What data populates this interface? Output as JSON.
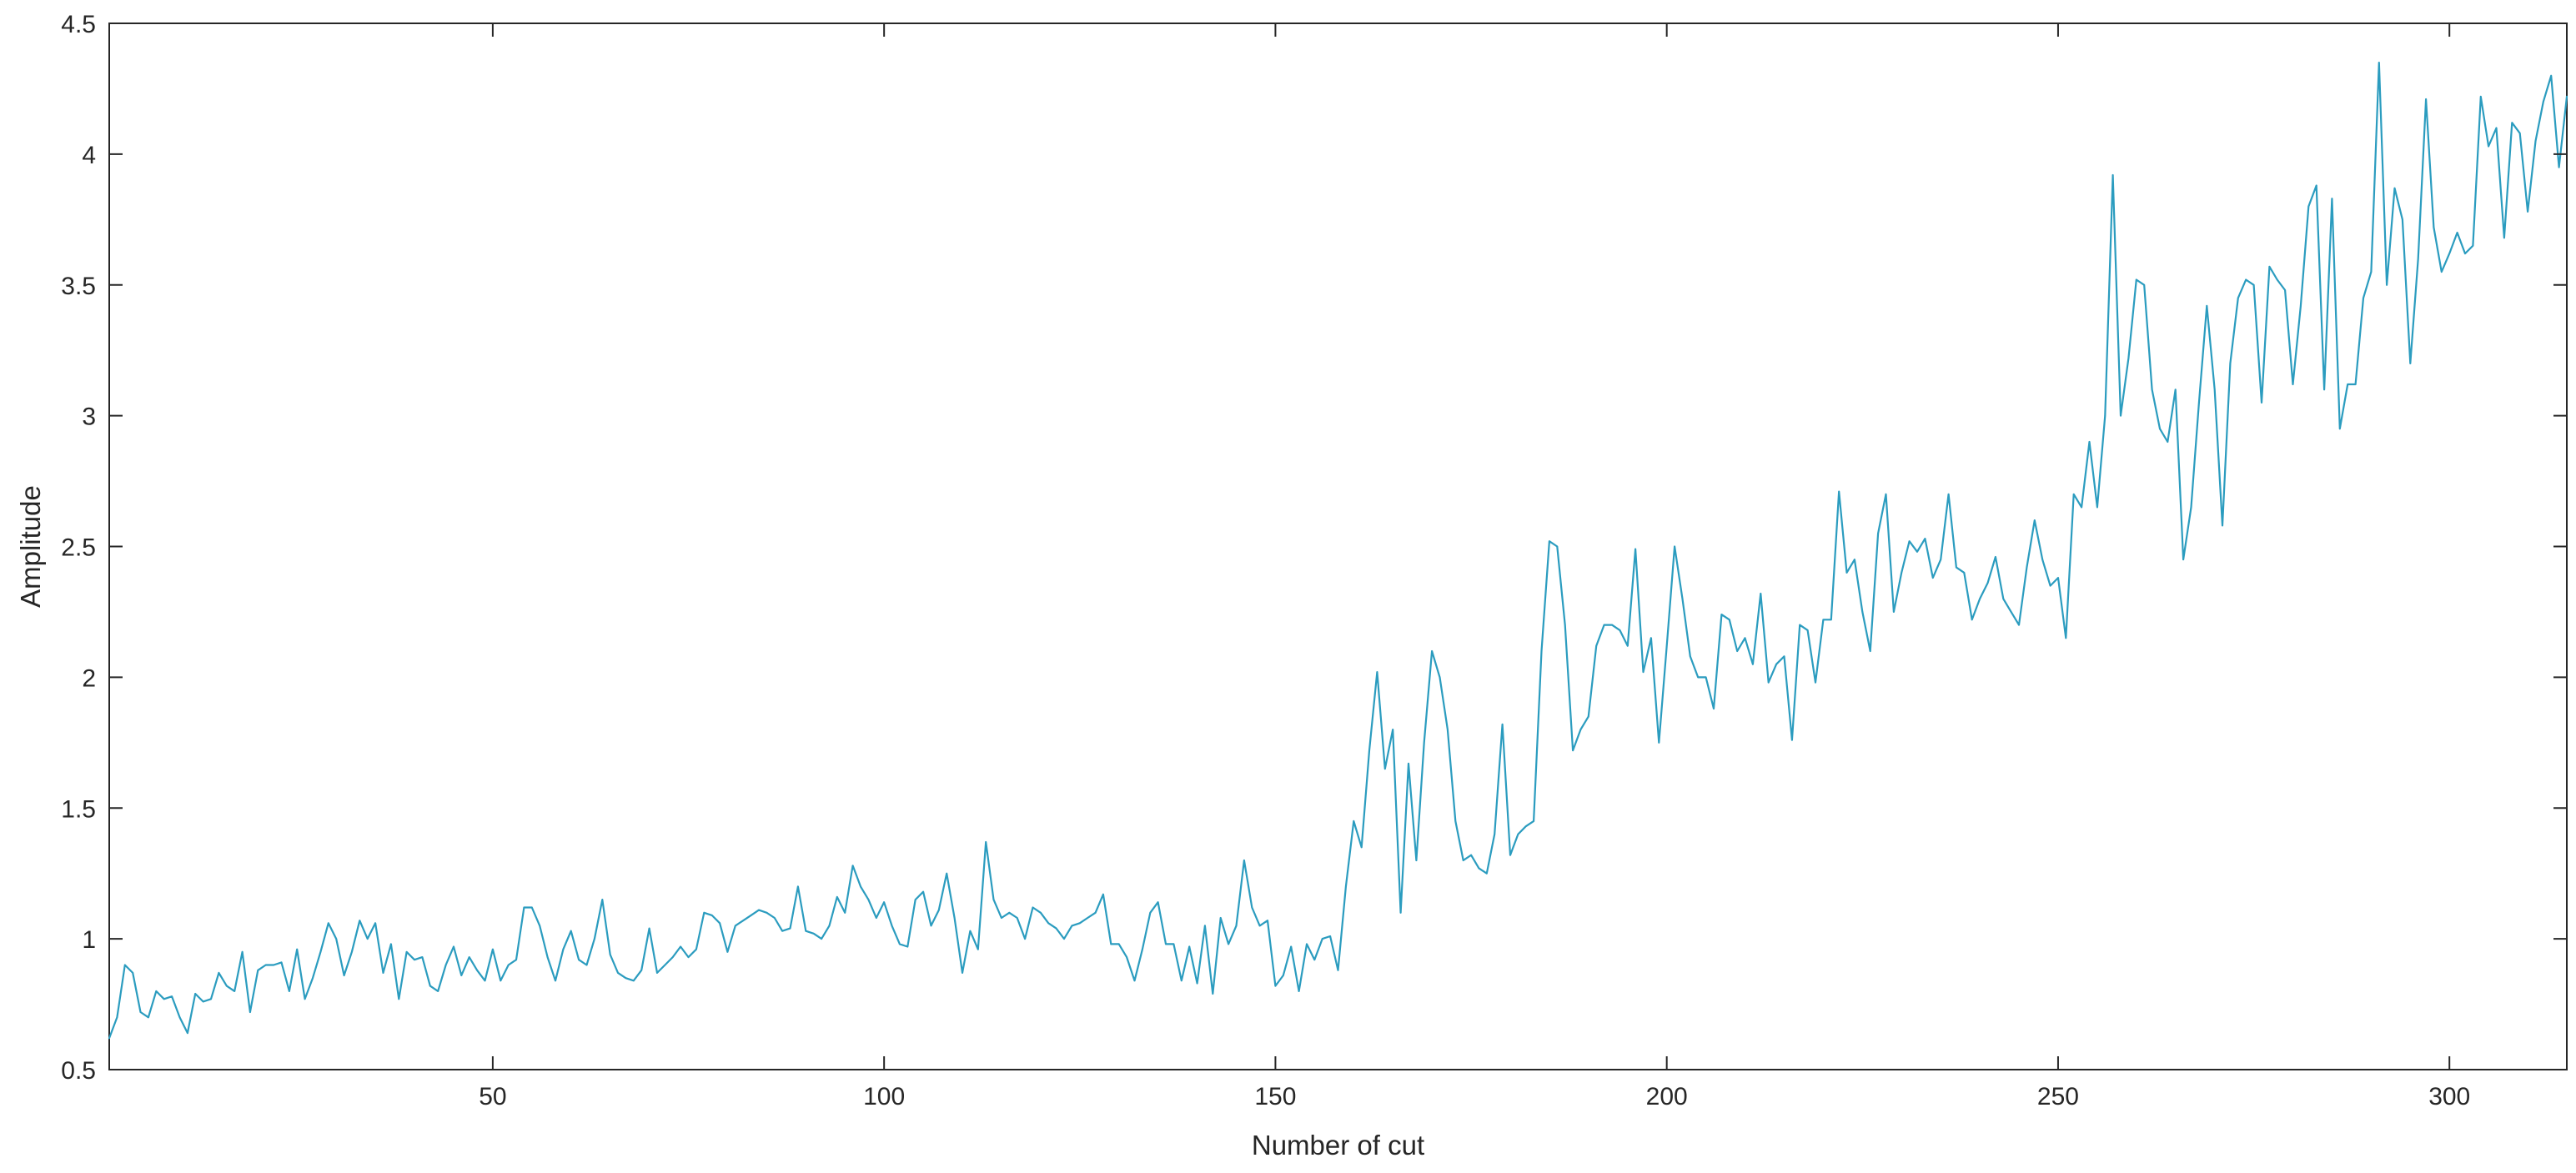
{
  "colors": {
    "series": "#2b9cbf",
    "axes": "#262626",
    "background": "#ffffff"
  },
  "chart_data": {
    "type": "line",
    "title": "",
    "xlabel": "Number of cut",
    "ylabel": "Amplitude",
    "xlim": [
      1,
      315
    ],
    "ylim": [
      0.5,
      4.5
    ],
    "xticks": [
      50,
      100,
      150,
      200,
      250,
      300
    ],
    "yticks": [
      0.5,
      1,
      1.5,
      2,
      2.5,
      3,
      3.5,
      4,
      4.5
    ],
    "xtick_labels": [
      "50",
      "100",
      "150",
      "200",
      "250",
      "300"
    ],
    "ytick_labels": [
      "0.5",
      "1",
      "1.5",
      "2",
      "2.5",
      "3",
      "3.5",
      "4",
      "4.5"
    ],
    "grid": false,
    "box": true,
    "series": [
      {
        "x_start": 1,
        "x_step": 1,
        "values": [
          0.62,
          0.7,
          0.9,
          0.87,
          0.72,
          0.7,
          0.8,
          0.77,
          0.78,
          0.7,
          0.64,
          0.79,
          0.76,
          0.77,
          0.87,
          0.82,
          0.8,
          0.95,
          0.72,
          0.88,
          0.9,
          0.9,
          0.91,
          0.8,
          0.96,
          0.77,
          0.85,
          0.95,
          1.06,
          1.0,
          0.86,
          0.95,
          1.07,
          1.0,
          1.06,
          0.87,
          0.98,
          0.77,
          0.95,
          0.92,
          0.93,
          0.82,
          0.8,
          0.9,
          0.97,
          0.86,
          0.93,
          0.88,
          0.84,
          0.96,
          0.84,
          0.9,
          0.92,
          1.12,
          1.12,
          1.05,
          0.93,
          0.84,
          0.96,
          1.03,
          0.92,
          0.9,
          1.0,
          1.15,
          0.94,
          0.87,
          0.85,
          0.84,
          0.88,
          1.04,
          0.87,
          0.9,
          0.93,
          0.97,
          0.93,
          0.96,
          1.1,
          1.09,
          1.06,
          0.95,
          1.05,
          1.07,
          1.09,
          1.11,
          1.1,
          1.08,
          1.03,
          1.04,
          1.2,
          1.03,
          1.02,
          1.0,
          1.05,
          1.16,
          1.1,
          1.28,
          1.2,
          1.15,
          1.08,
          1.14,
          1.05,
          0.98,
          0.97,
          1.15,
          1.18,
          1.05,
          1.11,
          1.25,
          1.08,
          0.87,
          1.03,
          0.96,
          1.37,
          1.15,
          1.08,
          1.1,
          1.08,
          1.0,
          1.12,
          1.1,
          1.06,
          1.04,
          1.0,
          1.05,
          1.06,
          1.08,
          1.1,
          1.17,
          0.98,
          0.98,
          0.93,
          0.84,
          0.96,
          1.1,
          1.14,
          0.98,
          0.98,
          0.84,
          0.97,
          0.83,
          1.05,
          0.79,
          1.08,
          0.98,
          1.05,
          1.3,
          1.12,
          1.05,
          1.07,
          0.82,
          0.86,
          0.97,
          0.8,
          0.98,
          0.92,
          1.0,
          1.01,
          0.88,
          1.2,
          1.45,
          1.35,
          1.72,
          2.02,
          1.65,
          1.8,
          1.1,
          1.67,
          1.3,
          1.75,
          2.1,
          2.0,
          1.8,
          1.45,
          1.3,
          1.32,
          1.27,
          1.25,
          1.4,
          1.82,
          1.32,
          1.4,
          1.43,
          1.45,
          2.1,
          2.52,
          2.5,
          2.2,
          1.72,
          1.8,
          1.85,
          2.12,
          2.2,
          2.2,
          2.18,
          2.12,
          2.49,
          2.02,
          2.15,
          1.75,
          2.12,
          2.5,
          2.3,
          2.08,
          2.0,
          2.0,
          1.88,
          2.24,
          2.22,
          2.1,
          2.15,
          2.05,
          2.32,
          1.98,
          2.05,
          2.08,
          1.76,
          2.2,
          2.18,
          1.98,
          2.22,
          2.22,
          2.71,
          2.4,
          2.45,
          2.25,
          2.1,
          2.55,
          2.7,
          2.25,
          2.4,
          2.52,
          2.48,
          2.53,
          2.38,
          2.45,
          2.7,
          2.42,
          2.4,
          2.22,
          2.3,
          2.36,
          2.46,
          2.3,
          2.25,
          2.2,
          2.42,
          2.6,
          2.45,
          2.35,
          2.38,
          2.15,
          2.7,
          2.65,
          2.9,
          2.65,
          3.0,
          3.92,
          3.0,
          3.22,
          3.52,
          3.5,
          3.1,
          2.95,
          2.9,
          3.1,
          2.45,
          2.65,
          3.05,
          3.42,
          3.1,
          2.58,
          3.2,
          3.45,
          3.52,
          3.5,
          3.05,
          3.57,
          3.52,
          3.48,
          3.12,
          3.42,
          3.8,
          3.88,
          3.1,
          3.83,
          2.95,
          3.12,
          3.12,
          3.45,
          3.55,
          4.35,
          3.5,
          3.87,
          3.75,
          3.2,
          3.6,
          4.21,
          3.72,
          3.55,
          3.62,
          3.7,
          3.62,
          3.65,
          4.22,
          4.03,
          4.1,
          3.68,
          4.12,
          4.08,
          3.78,
          4.05,
          4.2,
          4.3,
          3.95,
          4.22
        ]
      }
    ]
  }
}
